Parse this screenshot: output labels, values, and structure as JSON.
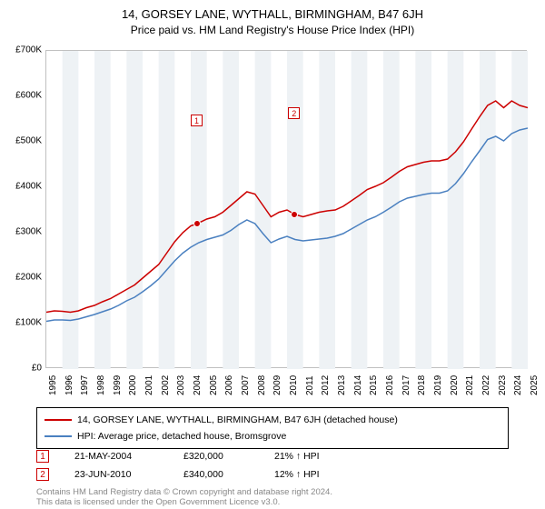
{
  "title_line1": "14, GORSEY LANE, WYTHALL, BIRMINGHAM, B47 6JH",
  "title_line2": "Price paid vs. HM Land Registry's House Price Index (HPI)",
  "chart": {
    "type": "line",
    "background_color": "#ffffff",
    "band_color": "#eef2f5",
    "axis_color": "#c0c0c0",
    "series1_color": "#cc0000",
    "series2_color": "#4a80c0",
    "line_width": 1.5,
    "x_min": 1995,
    "x_max": 2025,
    "y_min": 0,
    "y_max": 700,
    "y_ticks": [
      "£0",
      "£100K",
      "£200K",
      "£300K",
      "£400K",
      "£500K",
      "£600K",
      "£700K"
    ],
    "x_ticks": [
      "1995",
      "1996",
      "1997",
      "1998",
      "1999",
      "2000",
      "2001",
      "2002",
      "2003",
      "2004",
      "2005",
      "2006",
      "2007",
      "2008",
      "2009",
      "2010",
      "2011",
      "2012",
      "2013",
      "2014",
      "2015",
      "2016",
      "2017",
      "2018",
      "2019",
      "2020",
      "2021",
      "2022",
      "2023",
      "2024",
      "2025"
    ],
    "series1_label": "14, GORSEY LANE, WYTHALL, BIRMINGHAM, B47 6JH (detached house)",
    "series2_label": "HPI: Average price, detached house, Bromsgrove",
    "series1": [
      [
        1995,
        125
      ],
      [
        1995.5,
        128
      ],
      [
        1996,
        127
      ],
      [
        1996.5,
        125
      ],
      [
        1997,
        128
      ],
      [
        1997.5,
        135
      ],
      [
        1998,
        140
      ],
      [
        1998.5,
        148
      ],
      [
        1999,
        155
      ],
      [
        1999.5,
        165
      ],
      [
        2000,
        175
      ],
      [
        2000.5,
        185
      ],
      [
        2001,
        200
      ],
      [
        2001.5,
        215
      ],
      [
        2002,
        230
      ],
      [
        2002.5,
        255
      ],
      [
        2003,
        280
      ],
      [
        2003.5,
        300
      ],
      [
        2004,
        315
      ],
      [
        2004.4,
        320
      ],
      [
        2005,
        330
      ],
      [
        2005.5,
        335
      ],
      [
        2006,
        345
      ],
      [
        2006.5,
        360
      ],
      [
        2007,
        375
      ],
      [
        2007.5,
        390
      ],
      [
        2008,
        385
      ],
      [
        2008.5,
        360
      ],
      [
        2009,
        335
      ],
      [
        2009.5,
        345
      ],
      [
        2010,
        350
      ],
      [
        2010.5,
        340
      ],
      [
        2011,
        335
      ],
      [
        2011.5,
        340
      ],
      [
        2012,
        345
      ],
      [
        2012.5,
        348
      ],
      [
        2013,
        350
      ],
      [
        2013.5,
        358
      ],
      [
        2014,
        370
      ],
      [
        2014.5,
        382
      ],
      [
        2015,
        395
      ],
      [
        2015.5,
        402
      ],
      [
        2016,
        410
      ],
      [
        2016.5,
        422
      ],
      [
        2017,
        435
      ],
      [
        2017.5,
        445
      ],
      [
        2018,
        450
      ],
      [
        2018.5,
        455
      ],
      [
        2019,
        458
      ],
      [
        2019.5,
        458
      ],
      [
        2020,
        462
      ],
      [
        2020.5,
        478
      ],
      [
        2021,
        500
      ],
      [
        2021.5,
        528
      ],
      [
        2022,
        555
      ],
      [
        2022.5,
        580
      ],
      [
        2023,
        590
      ],
      [
        2023.5,
        575
      ],
      [
        2024,
        590
      ],
      [
        2024.5,
        580
      ],
      [
        2025,
        575
      ]
    ],
    "series2": [
      [
        1995,
        105
      ],
      [
        1995.5,
        108
      ],
      [
        1996,
        108
      ],
      [
        1996.5,
        107
      ],
      [
        1997,
        110
      ],
      [
        1997.5,
        115
      ],
      [
        1998,
        120
      ],
      [
        1998.5,
        126
      ],
      [
        1999,
        132
      ],
      [
        1999.5,
        140
      ],
      [
        2000,
        150
      ],
      [
        2000.5,
        158
      ],
      [
        2001,
        170
      ],
      [
        2001.5,
        183
      ],
      [
        2002,
        198
      ],
      [
        2002.5,
        218
      ],
      [
        2003,
        238
      ],
      [
        2003.5,
        255
      ],
      [
        2004,
        268
      ],
      [
        2004.5,
        278
      ],
      [
        2005,
        285
      ],
      [
        2005.5,
        290
      ],
      [
        2006,
        295
      ],
      [
        2006.5,
        305
      ],
      [
        2007,
        318
      ],
      [
        2007.5,
        328
      ],
      [
        2008,
        320
      ],
      [
        2008.5,
        298
      ],
      [
        2009,
        278
      ],
      [
        2009.5,
        286
      ],
      [
        2010,
        292
      ],
      [
        2010.5,
        285
      ],
      [
        2011,
        282
      ],
      [
        2011.5,
        284
      ],
      [
        2012,
        286
      ],
      [
        2012.5,
        288
      ],
      [
        2013,
        292
      ],
      [
        2013.5,
        298
      ],
      [
        2014,
        308
      ],
      [
        2014.5,
        318
      ],
      [
        2015,
        328
      ],
      [
        2015.5,
        335
      ],
      [
        2016,
        345
      ],
      [
        2016.5,
        356
      ],
      [
        2017,
        368
      ],
      [
        2017.5,
        376
      ],
      [
        2018,
        380
      ],
      [
        2018.5,
        384
      ],
      [
        2019,
        387
      ],
      [
        2019.5,
        387
      ],
      [
        2020,
        392
      ],
      [
        2020.5,
        408
      ],
      [
        2021,
        430
      ],
      [
        2021.5,
        456
      ],
      [
        2022,
        480
      ],
      [
        2022.5,
        505
      ],
      [
        2023,
        512
      ],
      [
        2023.5,
        502
      ],
      [
        2024,
        518
      ],
      [
        2024.5,
        526
      ],
      [
        2025,
        530
      ]
    ],
    "markers": [
      {
        "num": "1",
        "year": 2004.4,
        "y": 320,
        "label_y_offset": -120,
        "date": "21-MAY-2004",
        "price": "£320,000",
        "pct": "21% ↑ HPI"
      },
      {
        "num": "2",
        "year": 2010.47,
        "y": 340,
        "label_y_offset": -118,
        "date": "23-JUN-2010",
        "price": "£340,000",
        "pct": "12% ↑ HPI"
      }
    ]
  },
  "legend": {
    "marker_color": "#cc0000"
  },
  "footer_line1": "Contains HM Land Registry data © Crown copyright and database right 2024.",
  "footer_line2": "This data is licensed under the Open Government Licence v3.0."
}
